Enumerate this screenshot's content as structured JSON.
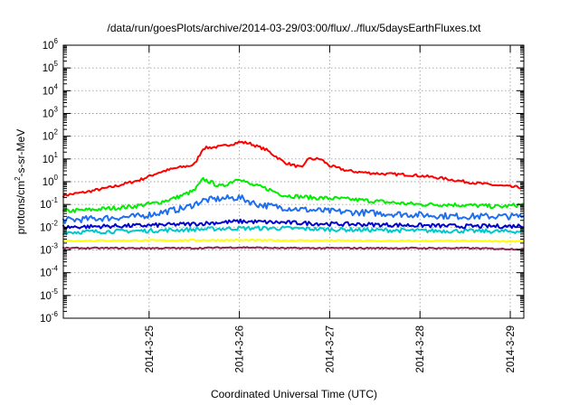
{
  "chart_data": {
    "type": "line",
    "title": "/data/run/goesPlots/archive/2014-03-29/03:00/flux/../flux/5daysEarthFluxes.txt",
    "xlabel": "Coordinated Universal Time (UTC)",
    "ylabel": {
      "text_before": "protons/cm",
      "superscript": "2",
      "text_after": "-s-sr-MeV"
    },
    "x_ticks": [
      "2014-3-25",
      "2014-3-26",
      "2014-3-27",
      "2014-3-28",
      "2014-3-29"
    ],
    "x_tick_values": [
      1,
      2,
      3,
      4,
      5
    ],
    "xlim": [
      0.05,
      5.15
    ],
    "y_scale": "log",
    "ylim": [
      1e-06,
      1000000.0
    ],
    "y_ticks": [
      {
        "base": "10",
        "exp": "-6"
      },
      {
        "base": "10",
        "exp": "-5"
      },
      {
        "base": "10",
        "exp": "-4"
      },
      {
        "base": "10",
        "exp": "-3"
      },
      {
        "base": "10",
        "exp": "-2"
      },
      {
        "base": "10",
        "exp": "-1"
      },
      {
        "base": "10",
        "exp": "0"
      },
      {
        "base": "10",
        "exp": "1"
      },
      {
        "base": "10",
        "exp": "2"
      },
      {
        "base": "10",
        "exp": "3"
      },
      {
        "base": "10",
        "exp": "4"
      },
      {
        "base": "10",
        "exp": "5"
      },
      {
        "base": "10",
        "exp": "6"
      }
    ],
    "y_tick_values": [
      1e-06,
      1e-05,
      0.0001,
      0.001,
      0.01,
      0.1,
      1,
      10,
      100,
      1000,
      10000,
      100000,
      1000000
    ],
    "grid": true,
    "series": [
      {
        "color": "#ff0000",
        "x": [
          0.05,
          0.3,
          0.6,
          0.9,
          1.1,
          1.3,
          1.5,
          1.6,
          1.8,
          2.0,
          2.1,
          2.3,
          2.5,
          2.7,
          2.75,
          2.9,
          3.0,
          3.2,
          3.4,
          3.6,
          3.9,
          4.2,
          4.5,
          4.7,
          5.0,
          5.15
        ],
        "y": [
          0.25,
          0.35,
          0.6,
          1.2,
          2.5,
          4.0,
          5.5,
          30,
          35,
          55,
          50,
          25,
          7,
          4,
          10,
          10,
          5,
          3,
          2.5,
          2.2,
          2.0,
          1.5,
          1.0,
          0.8,
          0.6,
          0.55
        ]
      },
      {
        "color": "#00ee00",
        "x": [
          0.05,
          0.4,
          0.8,
          1.1,
          1.3,
          1.5,
          1.6,
          1.8,
          2.0,
          2.1,
          2.3,
          2.5,
          2.8,
          3.1,
          3.4,
          3.7,
          4.0,
          4.3,
          4.6,
          4.9,
          5.15
        ],
        "y": [
          0.05,
          0.06,
          0.08,
          0.12,
          0.2,
          0.4,
          1.3,
          0.6,
          1.5,
          0.8,
          0.5,
          0.25,
          0.2,
          0.18,
          0.15,
          0.12,
          0.1,
          0.1,
          0.09,
          0.08,
          0.1
        ]
      },
      {
        "color": "#1e6ff0",
        "x": [
          0.05,
          0.5,
          0.9,
          1.2,
          1.4,
          1.6,
          1.8,
          2.0,
          2.2,
          2.4,
          2.7,
          3.0,
          3.3,
          3.6,
          4.0,
          4.4,
          4.8,
          5.15
        ],
        "y": [
          0.02,
          0.025,
          0.03,
          0.05,
          0.07,
          0.15,
          0.18,
          0.2,
          0.1,
          0.08,
          0.06,
          0.05,
          0.045,
          0.04,
          0.035,
          0.03,
          0.03,
          0.03
        ]
      },
      {
        "color": "#00c8c8",
        "x": [
          0.05,
          0.5,
          1.0,
          1.5,
          2.0,
          2.5,
          3.0,
          3.5,
          4.0,
          4.5,
          5.0,
          5.15
        ],
        "y": [
          0.006,
          0.0065,
          0.007,
          0.008,
          0.009,
          0.009,
          0.008,
          0.0075,
          0.007,
          0.0068,
          0.0065,
          0.0066
        ]
      },
      {
        "color": "#0000cc",
        "x": [
          0.05,
          0.5,
          1.0,
          1.5,
          2.0,
          2.5,
          3.0,
          3.5,
          4.0,
          4.5,
          5.0,
          5.15
        ],
        "y": [
          0.01,
          0.011,
          0.012,
          0.014,
          0.018,
          0.016,
          0.014,
          0.013,
          0.012,
          0.011,
          0.011,
          0.012
        ]
      },
      {
        "color": "#ffff00",
        "x": [
          0.05,
          0.5,
          1.0,
          1.5,
          2.0,
          2.5,
          3.0,
          3.5,
          4.0,
          4.5,
          5.0,
          5.15
        ],
        "y": [
          0.0025,
          0.0026,
          0.0026,
          0.0027,
          0.0027,
          0.0026,
          0.0026,
          0.0025,
          0.0025,
          0.0025,
          0.0024,
          0.0025
        ]
      },
      {
        "color": "#8b2252",
        "x": [
          0.05,
          0.5,
          1.0,
          1.5,
          2.0,
          2.5,
          3.0,
          3.5,
          4.0,
          4.5,
          5.0,
          5.15
        ],
        "y": [
          0.0012,
          0.0012,
          0.0012,
          0.0012,
          0.0013,
          0.0012,
          0.0012,
          0.0012,
          0.0012,
          0.0012,
          0.0011,
          0.0011
        ]
      }
    ]
  }
}
